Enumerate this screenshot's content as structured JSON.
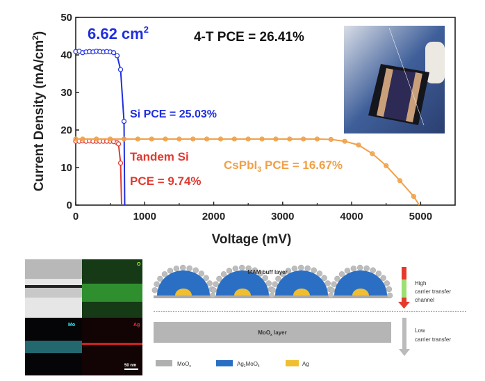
{
  "chart_data": {
    "type": "line",
    "xlabel": "Voltage (mV)",
    "ylabel": "Current Density (mA/cm",
    "ylabel_sup": "2",
    "ylabel_end": ")",
    "xlim": [
      0,
      5500
    ],
    "ylim": [
      0,
      50
    ],
    "xticks": [
      0,
      1000,
      2000,
      3000,
      4000,
      5000
    ],
    "yticks": [
      0,
      10,
      20,
      30,
      40,
      50
    ],
    "grid": false,
    "series": [
      {
        "color": "#1f2ee0",
        "x": [
          0,
          50,
          100,
          150,
          200,
          250,
          300,
          350,
          400,
          450,
          500,
          550,
          600,
          650,
          700,
          710
        ],
        "y": [
          40.9,
          41.0,
          40.6,
          40.8,
          40.9,
          40.8,
          41.0,
          40.9,
          40.8,
          40.9,
          40.8,
          40.6,
          39.8,
          36.1,
          22.3,
          0
        ]
      },
      {
        "color": "#e03a30",
        "x": [
          0,
          50,
          100,
          150,
          200,
          250,
          300,
          350,
          400,
          450,
          500,
          550,
          600,
          620,
          650,
          665
        ],
        "y": [
          17.0,
          17.0,
          17.1,
          17.0,
          17.1,
          17.0,
          17.0,
          17.0,
          17.0,
          17.0,
          17.0,
          16.9,
          16.6,
          16.3,
          11.2,
          0
        ]
      },
      {
        "color": "#f0a048",
        "x": [
          0,
          100,
          300,
          500,
          700,
          900,
          1100,
          1300,
          1500,
          1700,
          1900,
          2100,
          2300,
          2500,
          2700,
          2900,
          3100,
          3300,
          3500,
          3700,
          3900,
          4100,
          4300,
          4500,
          4700,
          4900,
          4980
        ],
        "y": [
          17.6,
          17.6,
          17.6,
          17.6,
          17.6,
          17.6,
          17.6,
          17.6,
          17.6,
          17.6,
          17.6,
          17.6,
          17.6,
          17.6,
          17.6,
          17.6,
          17.6,
          17.6,
          17.6,
          17.5,
          17.0,
          16.0,
          13.7,
          10.5,
          6.5,
          2.3,
          0
        ]
      }
    ],
    "annotations": {
      "area": "6.62 cm",
      "area_sup": "2",
      "four_t": "4-T PCE = 26.41%",
      "si": "Si  PCE = 25.03%",
      "tandem_1": "Tandem Si",
      "tandem_2": "PCE = 9.74%",
      "cspbi_a": "CsPbI",
      "cspbi_sub": "3",
      "cspbi_b": " PCE = 16.67%"
    },
    "annotation_colors": {
      "si": "#1f2ee0",
      "tandem": "#e03a30",
      "cspbi": "#f0a048",
      "area": "#1f2ee0",
      "four_t": "#111111"
    }
  },
  "micrograph": {
    "o_label": "O",
    "mo_label": "Mo",
    "ag_label": "Ag",
    "scale_label": "50 nm"
  },
  "schematic": {
    "mam_label": "MAM buff layer",
    "high_1": "High",
    "high_2": "carrier transfer",
    "high_3": "channel",
    "moox_layer_a": "MoO",
    "moox_layer_sub": "x",
    "moox_layer_b": " layer",
    "low_1": "Low",
    "low_2": "carrier transfer",
    "legend": [
      {
        "label": "MoO",
        "sub": "x",
        "color": "#b0b0b0"
      },
      {
        "label": "Ag",
        "sub": "2",
        "label2": "MoO",
        "sub2": "4",
        "color": "#2a6fc4"
      },
      {
        "label": "Ag",
        "color": "#f0be30"
      }
    ]
  }
}
